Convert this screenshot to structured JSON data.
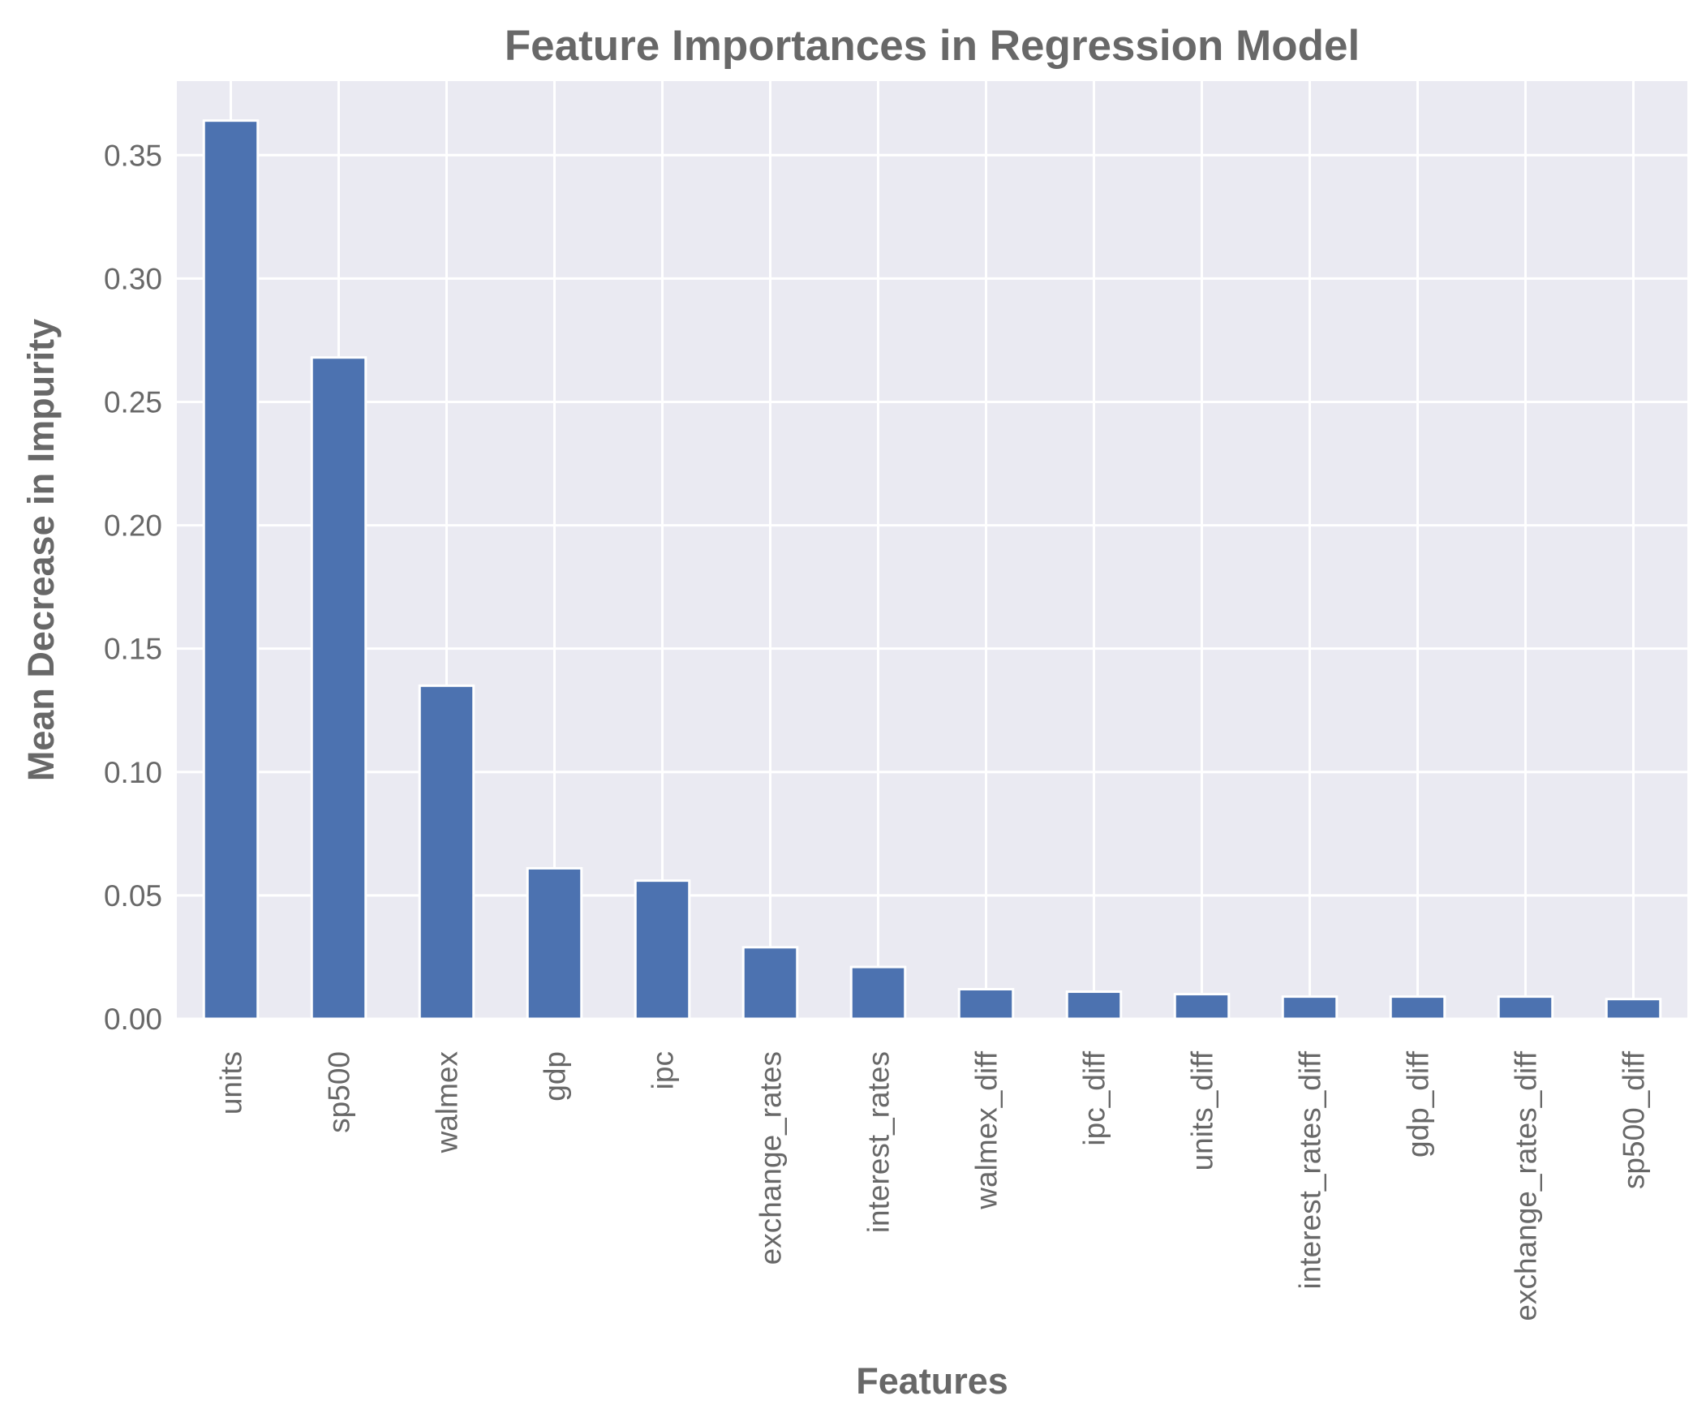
{
  "chart_data": {
    "type": "bar",
    "title": "Feature Importances in Regression Model",
    "xlabel": "Features",
    "ylabel": "Mean Decrease in Impurity",
    "categories": [
      "units",
      "sp500",
      "walmex",
      "gdp",
      "ipc",
      "exchange_rates",
      "interest_rates",
      "walmex_diff",
      "ipc_diff",
      "units_diff",
      "interest_rates_diff",
      "gdp_diff",
      "exchange_rates_diff",
      "sp500_diff"
    ],
    "values": [
      0.364,
      0.268,
      0.135,
      0.061,
      0.056,
      0.029,
      0.021,
      0.012,
      0.011,
      0.01,
      0.009,
      0.009,
      0.009,
      0.008
    ],
    "ylim": [
      0,
      0.38
    ],
    "yticks": [
      0.0,
      0.05,
      0.1,
      0.15,
      0.2,
      0.25,
      0.3,
      0.35
    ],
    "ytick_labels": [
      "0.00",
      "0.05",
      "0.10",
      "0.15",
      "0.20",
      "0.25",
      "0.30",
      "0.35"
    ],
    "grid": true,
    "colors": {
      "bar": "#4c72b0",
      "plot_background": "#eaeaf2",
      "grid": "#ffffff",
      "text": "#686868"
    }
  }
}
